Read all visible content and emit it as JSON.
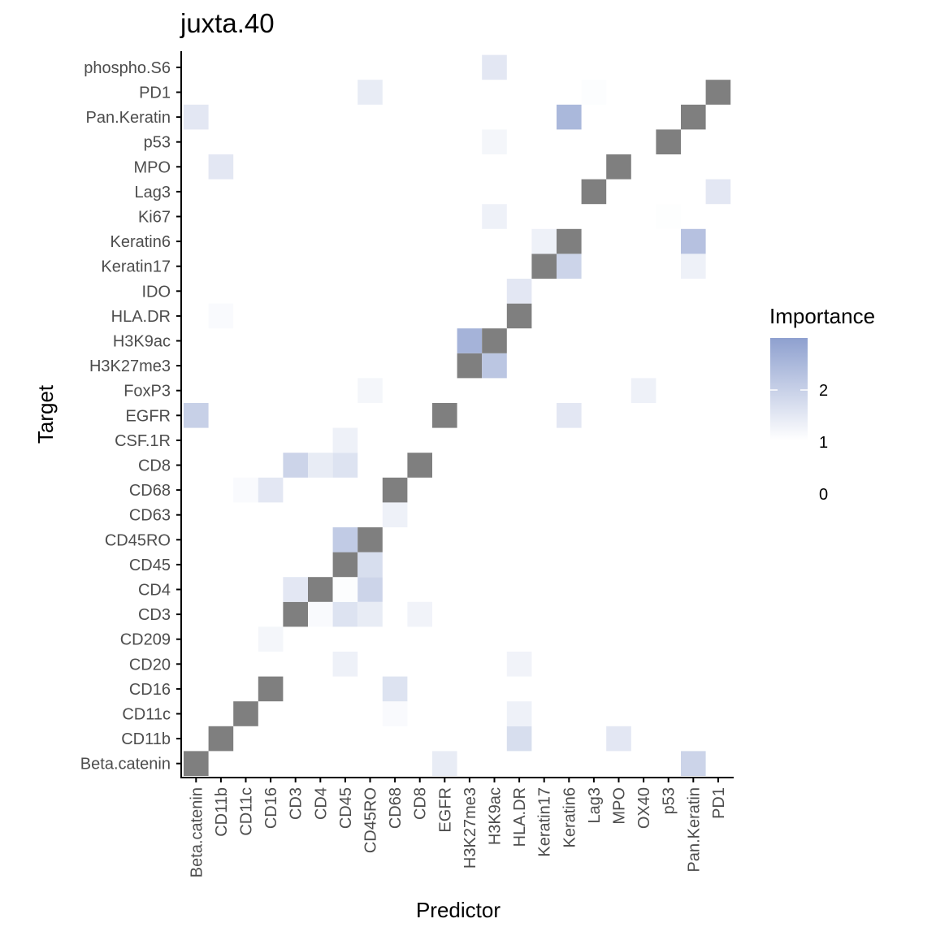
{
  "chart_data": {
    "type": "heatmap",
    "title": "juxta.40",
    "xlabel": "Predictor",
    "ylabel": "Target",
    "x_categories": [
      "Beta.catenin",
      "CD11b",
      "CD11c",
      "CD16",
      "CD3",
      "CD4",
      "CD45",
      "CD45RO",
      "CD68",
      "CD8",
      "EGFR",
      "H3K27me3",
      "H3K9ac",
      "HLA.DR",
      "Keratin17",
      "Keratin6",
      "Lag3",
      "MPO",
      "OX40",
      "p53",
      "Pan.Keratin",
      "PD1"
    ],
    "y_categories": [
      "Beta.catenin",
      "CD11b",
      "CD11c",
      "CD16",
      "CD20",
      "CD209",
      "CD3",
      "CD4",
      "CD45",
      "CD45RO",
      "CD63",
      "CD68",
      "CD8",
      "CSF.1R",
      "EGFR",
      "FoxP3",
      "H3K27me3",
      "H3K9ac",
      "HLA.DR",
      "IDO",
      "Keratin17",
      "Keratin6",
      "Ki67",
      "Lag3",
      "MPO",
      "p53",
      "Pan.Keratin",
      "PD1",
      "phospho.S6"
    ],
    "cells": [
      {
        "x": "Beta.catenin",
        "y": "Beta.catenin",
        "self": true
      },
      {
        "x": "EGFR",
        "y": "Beta.catenin",
        "value": 1.4
      },
      {
        "x": "Pan.Keratin",
        "y": "Beta.catenin",
        "value": 1.9
      },
      {
        "x": "CD11b",
        "y": "CD11b",
        "self": true
      },
      {
        "x": "HLA.DR",
        "y": "CD11b",
        "value": 1.7
      },
      {
        "x": "MPO",
        "y": "CD11b",
        "value": 1.5
      },
      {
        "x": "CD11c",
        "y": "CD11c",
        "self": true
      },
      {
        "x": "CD68",
        "y": "CD11c",
        "value": 1.1
      },
      {
        "x": "HLA.DR",
        "y": "CD11c",
        "value": 1.3
      },
      {
        "x": "CD16",
        "y": "CD16",
        "self": true
      },
      {
        "x": "CD68",
        "y": "CD16",
        "value": 1.6
      },
      {
        "x": "CD45",
        "y": "CD20",
        "value": 1.3
      },
      {
        "x": "HLA.DR",
        "y": "CD20",
        "value": 1.25
      },
      {
        "x": "CD16",
        "y": "CD209",
        "value": 1.2
      },
      {
        "x": "CD3",
        "y": "CD3",
        "self": true
      },
      {
        "x": "CD4",
        "y": "CD3",
        "value": 1.1
      },
      {
        "x": "CD45",
        "y": "CD3",
        "value": 1.6
      },
      {
        "x": "CD45RO",
        "y": "CD3",
        "value": 1.4
      },
      {
        "x": "CD8",
        "y": "CD3",
        "value": 1.25
      },
      {
        "x": "CD3",
        "y": "CD4",
        "value": 1.5
      },
      {
        "x": "CD4",
        "y": "CD4",
        "self": true
      },
      {
        "x": "CD45",
        "y": "CD4",
        "value": 1.05
      },
      {
        "x": "CD45RO",
        "y": "CD4",
        "value": 1.9
      },
      {
        "x": "CD45",
        "y": "CD45",
        "self": true
      },
      {
        "x": "CD45RO",
        "y": "CD45",
        "value": 1.7
      },
      {
        "x": "CD45",
        "y": "CD45RO",
        "value": 2.1
      },
      {
        "x": "CD45RO",
        "y": "CD45RO",
        "self": true
      },
      {
        "x": "CD68",
        "y": "CD63",
        "value": 1.3
      },
      {
        "x": "CD11c",
        "y": "CD68",
        "value": 1.1
      },
      {
        "x": "CD16",
        "y": "CD68",
        "value": 1.5
      },
      {
        "x": "CD68",
        "y": "CD68",
        "self": true
      },
      {
        "x": "CD3",
        "y": "CD8",
        "value": 1.9
      },
      {
        "x": "CD4",
        "y": "CD8",
        "value": 1.4
      },
      {
        "x": "CD45",
        "y": "CD8",
        "value": 1.6
      },
      {
        "x": "CD8",
        "y": "CD8",
        "self": true
      },
      {
        "x": "CD45",
        "y": "CSF.1R",
        "value": 1.3
      },
      {
        "x": "Beta.catenin",
        "y": "EGFR",
        "value": 2.0
      },
      {
        "x": "EGFR",
        "y": "EGFR",
        "self": true
      },
      {
        "x": "Keratin6",
        "y": "EGFR",
        "value": 1.5
      },
      {
        "x": "CD45RO",
        "y": "FoxP3",
        "value": 1.2
      },
      {
        "x": "OX40",
        "y": "FoxP3",
        "value": 1.3
      },
      {
        "x": "H3K27me3",
        "y": "H3K27me3",
        "self": true
      },
      {
        "x": "H3K9ac",
        "y": "H3K27me3",
        "value": 2.2
      },
      {
        "x": "H3K27me3",
        "y": "H3K9ac",
        "value": 2.6
      },
      {
        "x": "H3K9ac",
        "y": "H3K9ac",
        "self": true
      },
      {
        "x": "CD11b",
        "y": "HLA.DR",
        "value": 1.1
      },
      {
        "x": "HLA.DR",
        "y": "HLA.DR",
        "self": true
      },
      {
        "x": "HLA.DR",
        "y": "IDO",
        "value": 1.5
      },
      {
        "x": "Keratin17",
        "y": "Keratin17",
        "self": true
      },
      {
        "x": "Keratin6",
        "y": "Keratin17",
        "value": 1.9
      },
      {
        "x": "Pan.Keratin",
        "y": "Keratin17",
        "value": 1.3
      },
      {
        "x": "Keratin17",
        "y": "Keratin6",
        "value": 1.3
      },
      {
        "x": "Keratin6",
        "y": "Keratin6",
        "self": true
      },
      {
        "x": "Pan.Keratin",
        "y": "Keratin6",
        "value": 2.3
      },
      {
        "x": "H3K9ac",
        "y": "Ki67",
        "value": 1.3
      },
      {
        "x": "p53",
        "y": "Ki67",
        "value": 1.03
      },
      {
        "x": "Lag3",
        "y": "Lag3",
        "self": true
      },
      {
        "x": "PD1",
        "y": "Lag3",
        "value": 1.5
      },
      {
        "x": "CD11b",
        "y": "MPO",
        "value": 1.5
      },
      {
        "x": "MPO",
        "y": "MPO",
        "self": true
      },
      {
        "x": "H3K9ac",
        "y": "p53",
        "value": 1.2
      },
      {
        "x": "p53",
        "y": "p53",
        "self": true
      },
      {
        "x": "Beta.catenin",
        "y": "Pan.Keratin",
        "value": 1.5
      },
      {
        "x": "Keratin6",
        "y": "Pan.Keratin",
        "value": 2.5
      },
      {
        "x": "Pan.Keratin",
        "y": "Pan.Keratin",
        "self": true
      },
      {
        "x": "CD45RO",
        "y": "PD1",
        "value": 1.4
      },
      {
        "x": "Lag3",
        "y": "PD1",
        "value": 1.05
      },
      {
        "x": "PD1",
        "y": "PD1",
        "self": true
      },
      {
        "x": "H3K9ac",
        "y": "phospho.S6",
        "value": 1.5
      }
    ],
    "self_color": "#7f7f7f",
    "color_low": "#ffffff",
    "color_high": "#8ea0cf",
    "value_range": [
      0,
      3
    ],
    "legend": {
      "title": "Importance",
      "breaks": [
        2,
        1,
        0
      ],
      "position": "right"
    },
    "grid": false
  }
}
